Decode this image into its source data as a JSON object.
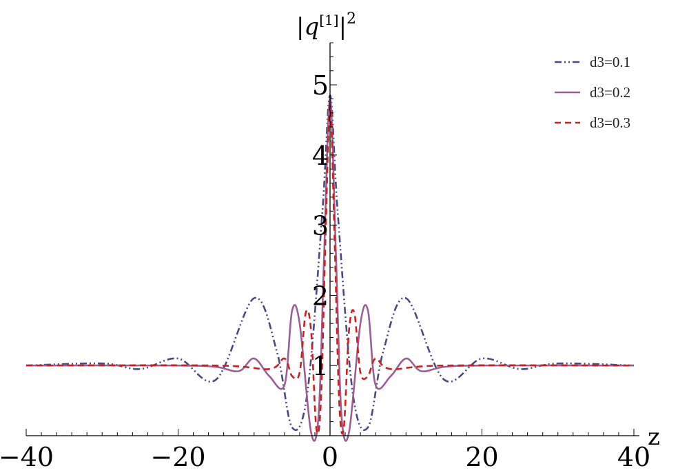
{
  "chart_data": {
    "type": "line",
    "title": "",
    "xlabel": "z",
    "ylabel": "|q[1]|2",
    "ylabel_base": "|q",
    "ylabel_index": "[1]",
    "ylabel_close": "|",
    "ylabel_exponent": "2",
    "xlim": [
      -40,
      40
    ],
    "ylim": [
      0,
      5.6
    ],
    "x_ticks": [
      -40,
      -20,
      0,
      20,
      40
    ],
    "x_tick_labels": [
      "−40",
      "−20",
      "0",
      "20",
      "40"
    ],
    "y_ticks": [
      1,
      2,
      3,
      4,
      5
    ],
    "y_tick_labels": [
      "1",
      "2",
      "3",
      "4",
      "5"
    ],
    "grid": false,
    "legend_position": "top-right",
    "series": [
      {
        "name": "d3=0.1",
        "color": "#4a4a80",
        "dash": "dash-dot-dot",
        "x": [
          -40,
          -30,
          -25,
          -20,
          -15,
          -10,
          -7,
          -5,
          -3,
          -1,
          0,
          1,
          3,
          5,
          7,
          10,
          15,
          20,
          25,
          30,
          40
        ],
        "y": [
          1.0,
          1.03,
          0.95,
          1.1,
          0.8,
          1.96,
          1.2,
          0.12,
          0.6,
          3.2,
          4.85,
          3.2,
          0.6,
          0.12,
          1.2,
          1.96,
          0.8,
          1.1,
          0.95,
          1.03,
          1.0
        ]
      },
      {
        "name": "d3=0.2",
        "color": "#9b5f93",
        "dash": "solid",
        "x": [
          -40,
          -20,
          -15,
          -12,
          -10,
          -8,
          -6,
          -5,
          -4,
          -2.5,
          -1.5,
          -0.8,
          0,
          0.8,
          1.5,
          2.5,
          4,
          5,
          6,
          8,
          10,
          12,
          15,
          20,
          40
        ],
        "y": [
          1.0,
          1.0,
          0.98,
          0.92,
          1.1,
          0.85,
          0.72,
          1.78,
          1.6,
          0.05,
          0.3,
          2.5,
          4.8,
          2.5,
          0.3,
          0.05,
          1.6,
          1.78,
          0.72,
          0.85,
          1.1,
          0.92,
          0.98,
          1.0,
          1.0
        ]
      },
      {
        "name": "d3=0.3",
        "color": "#cc1f1f",
        "dash": "dashed",
        "x": [
          -40,
          -15,
          -8,
          -6,
          -5,
          -4,
          -3.2,
          -2.5,
          -1.8,
          -1.2,
          -0.6,
          0,
          0.6,
          1.2,
          1.8,
          2.5,
          3.2,
          4,
          5,
          6,
          8,
          15,
          40
        ],
        "y": [
          1.0,
          1.0,
          0.95,
          1.1,
          0.85,
          0.9,
          1.75,
          1.5,
          0.1,
          0.5,
          2.8,
          4.7,
          2.8,
          0.5,
          0.1,
          1.5,
          1.75,
          0.9,
          0.85,
          1.1,
          0.95,
          1.0,
          1.0
        ]
      }
    ]
  }
}
